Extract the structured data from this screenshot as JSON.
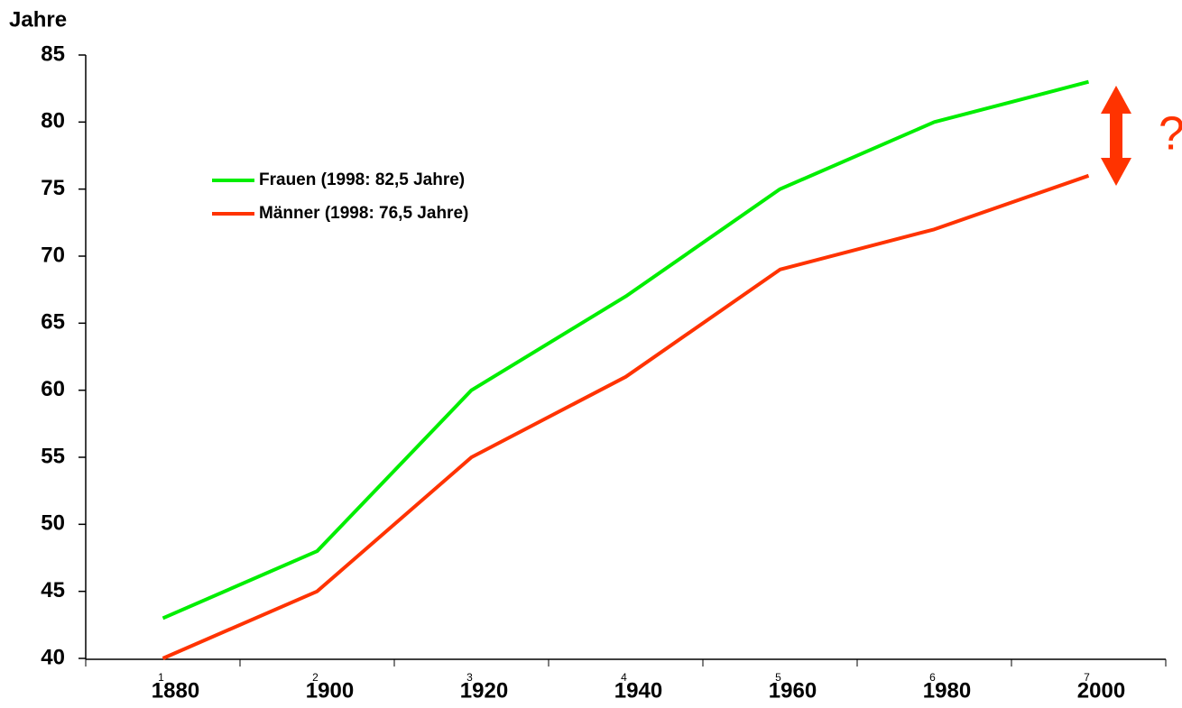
{
  "chart_data": {
    "type": "line",
    "y_label": "Jahre",
    "categories": [
      "1880",
      "1900",
      "1920",
      "1940",
      "1960",
      "1980",
      "2000"
    ],
    "category_numbers": [
      "1",
      "2",
      "3",
      "4",
      "5",
      "6",
      "7"
    ],
    "series": [
      {
        "name": "Frauen (1998: 82,5 Jahre)",
        "color": "#00ee00",
        "values": [
          43,
          48,
          60,
          67,
          75,
          80,
          83
        ]
      },
      {
        "name": "Männer (1998: 76,5 Jahre)",
        "color": "#ff3300",
        "values": [
          40,
          45,
          55,
          61,
          69,
          72,
          76
        ]
      }
    ],
    "ylim": [
      40,
      85
    ],
    "yticks": [
      40,
      45,
      50,
      55,
      60,
      65,
      70,
      75,
      80,
      85
    ],
    "annotation": "?",
    "annotation_color": "#ff3300"
  }
}
